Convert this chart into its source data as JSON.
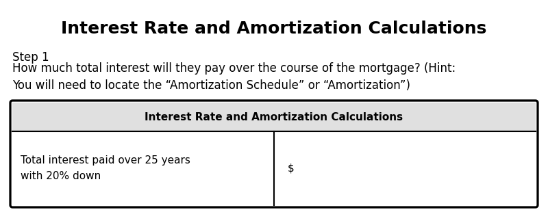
{
  "title": "Interest Rate and Amortization Calculations",
  "title_fontsize": 18,
  "title_font": "sans-serif",
  "step_text": "Step 1",
  "body_text": "How much total interest will they pay over the course of the mortgage? (Hint:\nYou will need to locate the “Amortization Schedule” or “Amortization”)",
  "body_fontsize": 12,
  "table_header": "Interest Rate and Amortization Calculations",
  "table_header_fontsize": 11,
  "table_row_label": "Total interest paid over 25 years\nwith 20% down",
  "table_row_value": "$",
  "table_row_fontsize": 11,
  "background_color": "#ffffff",
  "table_header_bg": "#e0e0e0",
  "table_row_bg": "#ffffff",
  "table_border_color": "#000000",
  "fig_width": 8.0,
  "fig_height": 3.07,
  "dpi": 100
}
